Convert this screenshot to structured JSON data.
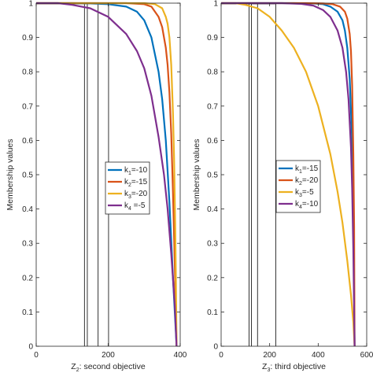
{
  "colors": {
    "blue": "#0072BD",
    "orange": "#D95319",
    "yellow": "#EDB120",
    "purple": "#7E2F8E",
    "axis": "#262626",
    "vline": "#000000"
  },
  "chart_data": [
    {
      "type": "line",
      "xlabel": "Z2: second objective",
      "xlabel_main": "Z",
      "xlabel_sub": "2",
      "xlabel_rest": ": second objective",
      "ylabel": "Membership values",
      "xlim": [
        0,
        400
      ],
      "ylim": [
        0,
        1
      ],
      "xticks": [
        0,
        200,
        400
      ],
      "xtick_labels": [
        "0",
        "200",
        "400"
      ],
      "yticks": [
        0,
        0.1,
        0.2,
        0.3,
        0.4,
        0.5,
        0.6,
        0.7,
        0.8,
        0.9,
        1
      ],
      "ytick_labels": [
        "0",
        "0.1",
        "0.2",
        "0.3",
        "0.4",
        "0.5",
        "0.6",
        "0.7",
        "0.8",
        "0.9",
        "1"
      ],
      "grid": false,
      "legend_position": "center-right",
      "vertical_lines": [
        134,
        142,
        172,
        201
      ],
      "series": [
        {
          "name": "k1=-10",
          "label_main": "k",
          "label_sub": "1",
          "label_rest": "=-10",
          "color": "blue",
          "x": [
            0,
            100,
            150,
            200,
            250,
            280,
            300,
            320,
            340,
            350,
            360,
            370,
            380,
            390
          ],
          "y": [
            1,
            1,
            0.999,
            0.997,
            0.99,
            0.975,
            0.95,
            0.9,
            0.8,
            0.72,
            0.6,
            0.42,
            0.2,
            0
          ]
        },
        {
          "name": "k2=-15",
          "label_main": "k",
          "label_sub": "2",
          "label_rest": "=-15",
          "color": "orange",
          "x": [
            0,
            200,
            250,
            300,
            320,
            340,
            350,
            360,
            365,
            370,
            375,
            380,
            385,
            390
          ],
          "y": [
            1,
            1,
            1,
            0.997,
            0.99,
            0.96,
            0.93,
            0.87,
            0.82,
            0.74,
            0.62,
            0.45,
            0.24,
            0
          ]
        },
        {
          "name": "k3=-20",
          "label_main": "k",
          "label_sub": "3",
          "label_rest": "=-20",
          "color": "yellow",
          "x": [
            0,
            250,
            300,
            330,
            350,
            360,
            365,
            370,
            375,
            380,
            383,
            386,
            388,
            390
          ],
          "y": [
            1,
            1,
            1,
            0.997,
            0.985,
            0.96,
            0.94,
            0.9,
            0.82,
            0.68,
            0.55,
            0.36,
            0.2,
            0
          ]
        },
        {
          "name": "k4 =-5",
          "label_main": "k",
          "label_sub": "4",
          "label_rest": " =-5",
          "color": "purple",
          "x": [
            0,
            60,
            100,
            150,
            200,
            250,
            280,
            300,
            320,
            340,
            355,
            365,
            375,
            385,
            390
          ],
          "y": [
            1,
            1,
            0.995,
            0.985,
            0.96,
            0.91,
            0.86,
            0.81,
            0.73,
            0.61,
            0.5,
            0.4,
            0.27,
            0.12,
            0
          ]
        }
      ]
    },
    {
      "type": "line",
      "xlabel": "Z3: third objective",
      "xlabel_main": "Z",
      "xlabel_sub": "3",
      "xlabel_rest": ": third objective",
      "ylabel": "Membership values",
      "xlim": [
        0,
        600
      ],
      "ylim": [
        0,
        1
      ],
      "xticks": [
        0,
        200,
        400,
        600
      ],
      "xtick_labels": [
        "0",
        "200",
        "400",
        "600"
      ],
      "yticks": [
        0,
        0.1,
        0.2,
        0.3,
        0.4,
        0.5,
        0.6,
        0.7,
        0.8,
        0.9,
        1
      ],
      "ytick_labels": [
        "0",
        "0.1",
        "0.2",
        "0.3",
        "0.4",
        "0.5",
        "0.6",
        "0.7",
        "0.8",
        "0.9",
        "1"
      ],
      "grid": false,
      "legend_position": "center-right",
      "vertical_lines": [
        115,
        125,
        150,
        225
      ],
      "series": [
        {
          "name": "k1=-15",
          "label_main": "k",
          "label_sub": "1",
          "label_rest": "=-15",
          "color": "blue",
          "x": [
            0,
            300,
            380,
            420,
            450,
            480,
            500,
            510,
            520,
            530,
            540,
            545,
            550
          ],
          "y": [
            1,
            1,
            0.999,
            0.997,
            0.99,
            0.975,
            0.95,
            0.92,
            0.87,
            0.78,
            0.6,
            0.42,
            0
          ]
        },
        {
          "name": "k2=-20",
          "label_main": "k",
          "label_sub": "2",
          "label_rest": "=-20",
          "color": "orange",
          "x": [
            0,
            350,
            420,
            460,
            490,
            510,
            520,
            530,
            535,
            540,
            545,
            548,
            550
          ],
          "y": [
            1,
            1,
            0.999,
            0.997,
            0.99,
            0.975,
            0.955,
            0.91,
            0.86,
            0.76,
            0.56,
            0.35,
            0
          ]
        },
        {
          "name": "k3=-5",
          "label_main": "k",
          "label_sub": "3",
          "label_rest": "=-5",
          "color": "yellow",
          "x": [
            0,
            60,
            100,
            150,
            200,
            250,
            300,
            350,
            400,
            450,
            480,
            500,
            520,
            535,
            545,
            550
          ],
          "y": [
            1,
            1,
            0.995,
            0.985,
            0.96,
            0.92,
            0.87,
            0.8,
            0.7,
            0.56,
            0.45,
            0.36,
            0.25,
            0.15,
            0.07,
            0
          ]
        },
        {
          "name": "k4=-10",
          "label_main": "k",
          "label_sub": "4",
          "label_rest": "=-10",
          "color": "purple",
          "x": [
            0,
            250,
            330,
            380,
            420,
            450,
            480,
            500,
            515,
            525,
            535,
            540,
            545,
            550
          ],
          "y": [
            1,
            1,
            0.998,
            0.993,
            0.98,
            0.96,
            0.92,
            0.87,
            0.8,
            0.72,
            0.58,
            0.46,
            0.28,
            0
          ]
        }
      ]
    }
  ]
}
